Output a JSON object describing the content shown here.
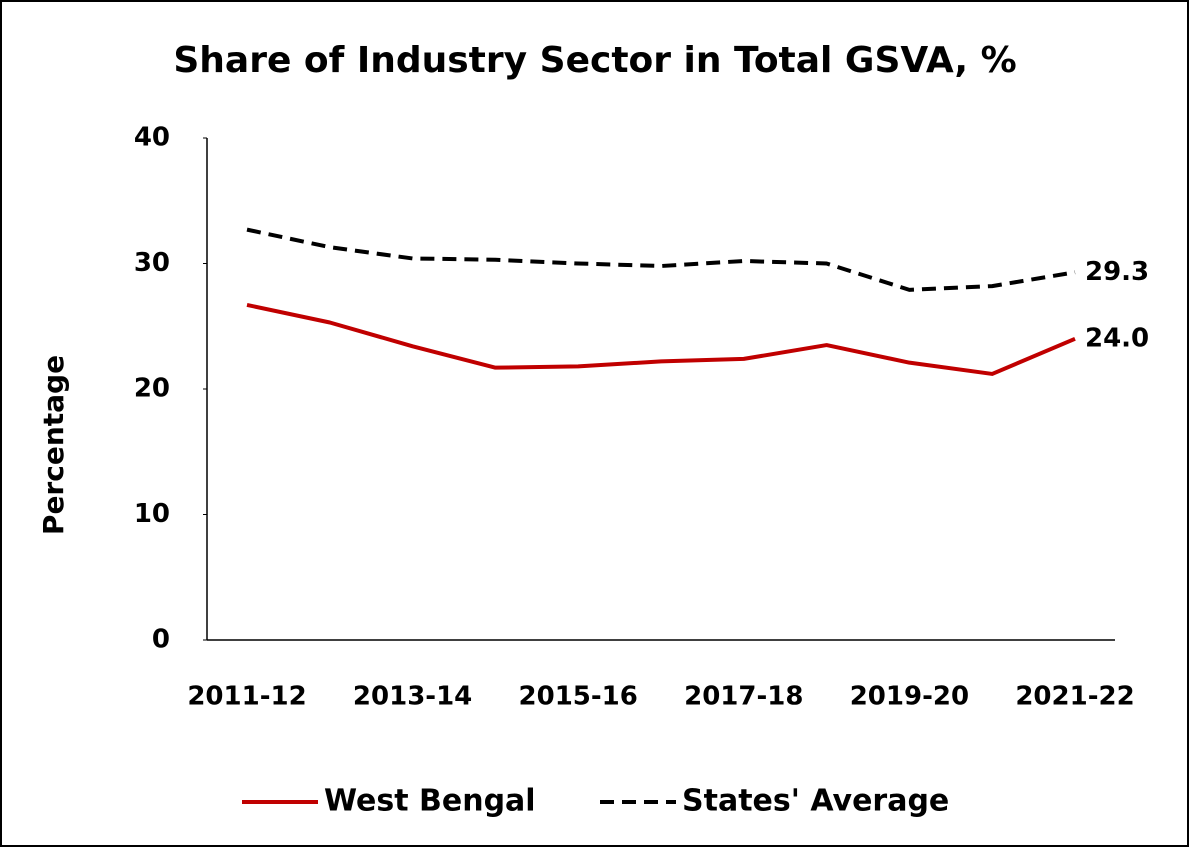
{
  "chart_data": {
    "type": "line",
    "title": "Share of Industry Sector in Total GSVA, %",
    "y_label": "Percentage",
    "categories": [
      "2011-12",
      null,
      "2013-14",
      null,
      "2015-16",
      null,
      "2017-18",
      null,
      "2019-20",
      null,
      "2021-22"
    ],
    "series": [
      {
        "name": "West Bengal",
        "color": "#c00000",
        "dash": "solid",
        "values": [
          26.7,
          25.3,
          23.4,
          21.7,
          21.8,
          22.2,
          22.4,
          23.5,
          22.1,
          21.2,
          24.0
        ],
        "value_labels": [
          null,
          null,
          null,
          null,
          null,
          null,
          null,
          null,
          null,
          null,
          "24.0"
        ]
      },
      {
        "name": "States' Average",
        "color": "#000000",
        "dash": "dashed",
        "values": [
          32.7,
          31.3,
          30.4,
          30.3,
          30.0,
          29.8,
          30.2,
          30.0,
          27.9,
          28.2,
          29.3
        ],
        "value_labels": [
          null,
          null,
          null,
          null,
          null,
          null,
          null,
          null,
          null,
          null,
          "29.3"
        ]
      }
    ],
    "ylim": [
      0,
      40
    ],
    "yticks": [
      0,
      10,
      20,
      30,
      40
    ],
    "grid": false,
    "legend": "bottom"
  }
}
